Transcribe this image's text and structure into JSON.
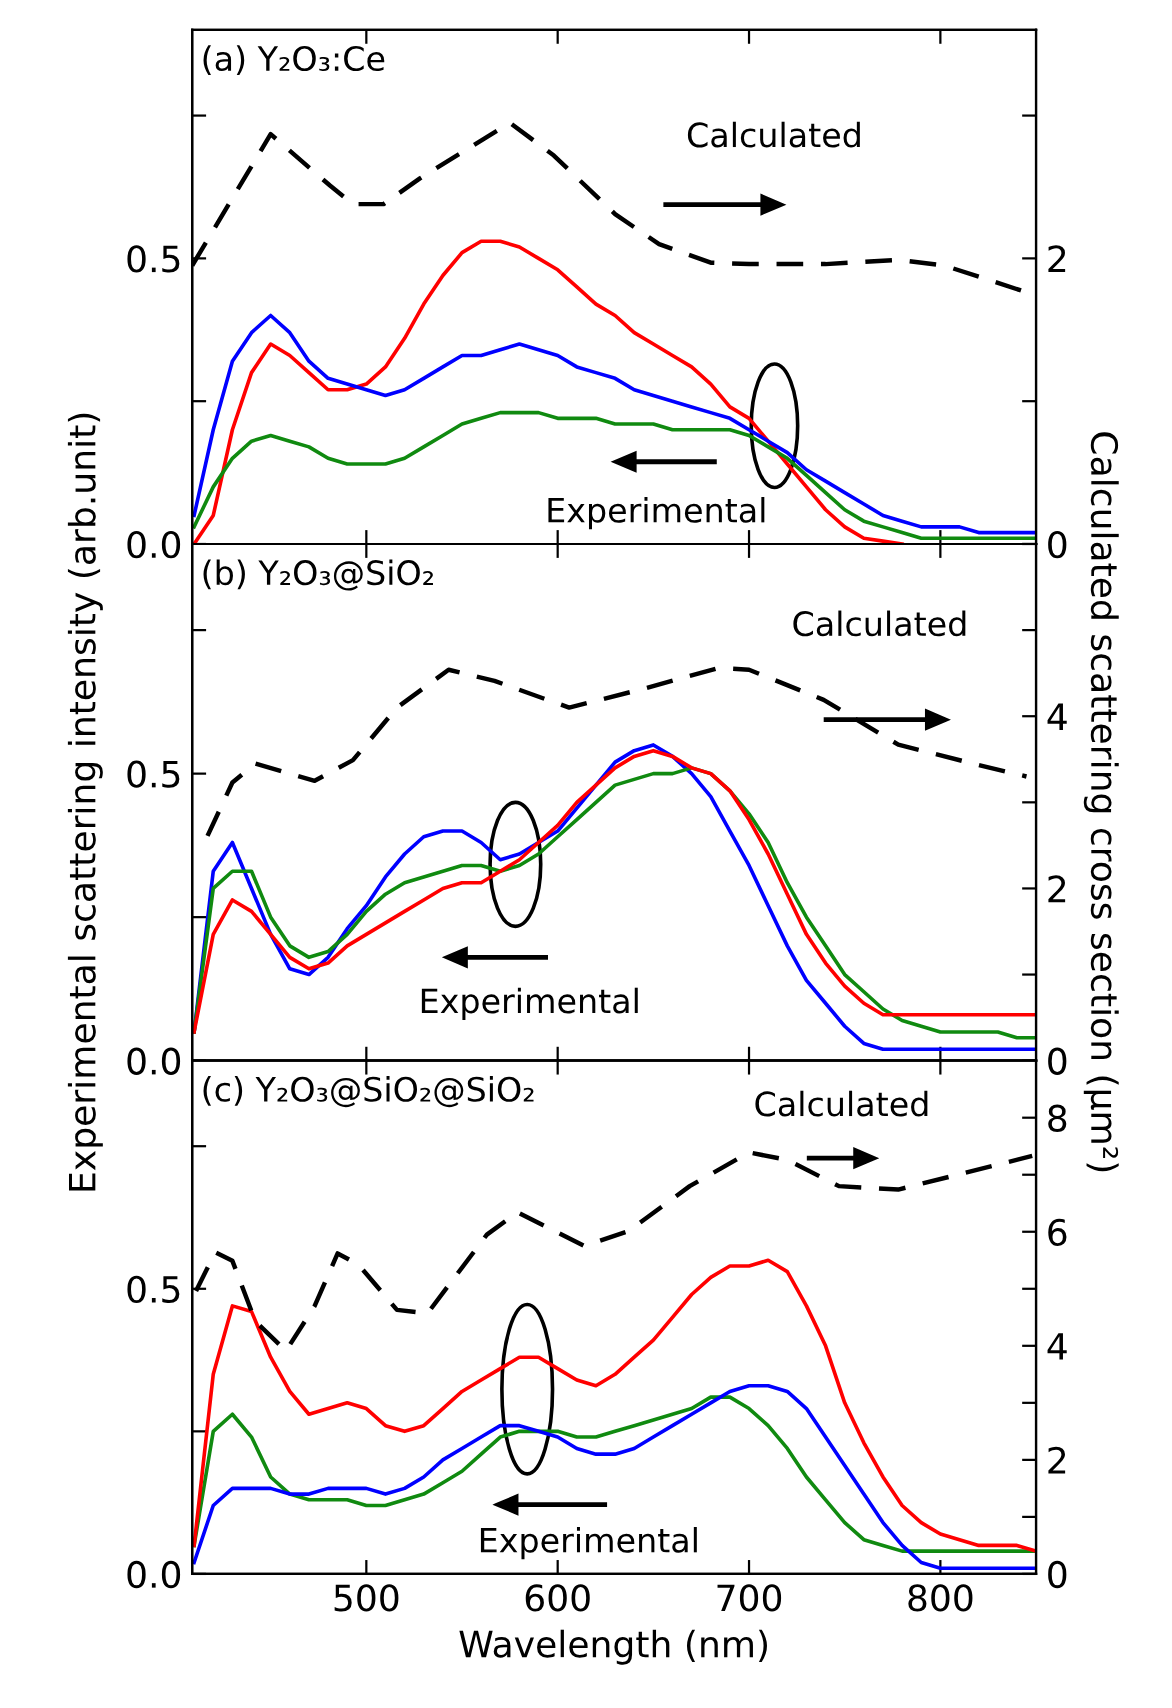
{
  "chart_data": [
    {
      "type": "line",
      "title": "(a) Y₂O₃:Ce",
      "annotations": [
        "Calculated",
        "Experimental"
      ],
      "x": [
        410,
        420,
        430,
        440,
        450,
        460,
        470,
        480,
        490,
        500,
        510,
        520,
        530,
        540,
        550,
        560,
        570,
        580,
        590,
        600,
        610,
        620,
        630,
        640,
        650,
        660,
        670,
        680,
        690,
        700,
        710,
        720,
        730,
        740,
        750,
        760,
        770,
        780,
        790,
        800,
        810,
        820,
        830,
        840,
        850
      ],
      "series": [
        {
          "color": "#ff0000",
          "values": [
            0.0,
            0.05,
            0.2,
            0.3,
            0.35,
            0.33,
            0.3,
            0.27,
            0.27,
            0.28,
            0.31,
            0.36,
            0.42,
            0.47,
            0.51,
            0.53,
            0.53,
            0.52,
            0.5,
            0.48,
            0.45,
            0.42,
            0.4,
            0.37,
            0.35,
            0.33,
            0.31,
            0.28,
            0.24,
            0.22,
            0.18,
            0.14,
            0.1,
            0.06,
            0.03,
            0.01,
            0.005,
            0.0,
            null,
            null,
            null,
            null,
            null,
            null,
            null
          ]
        },
        {
          "color": "#0000ff",
          "values": [
            0.05,
            0.2,
            0.32,
            0.37,
            0.4,
            0.37,
            0.32,
            0.29,
            0.28,
            0.27,
            0.26,
            0.27,
            0.29,
            0.31,
            0.33,
            0.33,
            0.34,
            0.35,
            0.34,
            0.33,
            0.31,
            0.3,
            0.29,
            0.27,
            0.26,
            0.25,
            0.24,
            0.23,
            0.22,
            0.2,
            0.18,
            0.16,
            0.13,
            0.11,
            0.09,
            0.07,
            0.05,
            0.04,
            0.03,
            0.03,
            0.03,
            0.02,
            0.02,
            0.02,
            0.02
          ]
        },
        {
          "color": "#108a10",
          "values": [
            0.03,
            0.1,
            0.15,
            0.18,
            0.19,
            0.18,
            0.17,
            0.15,
            0.14,
            0.14,
            0.14,
            0.15,
            0.17,
            0.19,
            0.21,
            0.22,
            0.23,
            0.23,
            0.23,
            0.22,
            0.22,
            0.22,
            0.21,
            0.21,
            0.21,
            0.2,
            0.2,
            0.2,
            0.2,
            0.19,
            0.17,
            0.15,
            0.12,
            0.09,
            0.06,
            0.04,
            0.03,
            0.02,
            0.01,
            0.01,
            0.01,
            0.01,
            0.01,
            0.01,
            0.01
          ]
        },
        {
          "color": "#000000",
          "axis": "y2",
          "line_style": "dashed",
          "x": [
            409,
            450,
            481,
            493,
            509,
            528,
            575,
            598,
            630,
            653,
            680,
            700,
            740,
            778,
            802,
            848
          ],
          "values": [
            1.95,
            2.87,
            2.51,
            2.38,
            2.38,
            2.56,
            2.95,
            2.72,
            2.31,
            2.1,
            1.97,
            1.96,
            1.96,
            1.99,
            1.95,
            1.75
          ]
        }
      ],
      "xlim": [
        409,
        850
      ],
      "xticks": [
        {
          "value": 500,
          "label": null
        },
        {
          "value": 600,
          "label": null
        },
        {
          "value": 700,
          "label": null
        },
        {
          "value": 800,
          "label": null
        }
      ],
      "ylim": [
        0,
        0.9
      ],
      "yticks": [
        {
          "value": 0,
          "label": "0.0"
        },
        {
          "value": 0.25,
          "label": null
        },
        {
          "value": 0.5,
          "label": "0.5"
        },
        {
          "value": 0.75,
          "label": null
        }
      ],
      "y2lim": [
        0,
        3.6
      ],
      "y2ticks": [
        0,
        {
          "value": 1,
          "label": null
        },
        2,
        {
          "value": 3,
          "label": null
        }
      ],
      "tick_labels": "y"
    },
    {
      "type": "line",
      "title": "(b) Y₂O₃@SiO₂",
      "annotations": [
        "Calculated",
        "Experimental"
      ],
      "ylabel": "Experimental scattering intensity (arb.unit)",
      "y2label": "Calculated scattering cross section (μm²)",
      "x": [
        410,
        420,
        430,
        440,
        450,
        460,
        470,
        480,
        490,
        500,
        510,
        520,
        530,
        540,
        550,
        560,
        570,
        580,
        590,
        600,
        610,
        620,
        630,
        640,
        650,
        660,
        670,
        680,
        690,
        700,
        710,
        720,
        730,
        740,
        750,
        760,
        770,
        780,
        790,
        800,
        810,
        820,
        830,
        840,
        850
      ],
      "series": [
        {
          "color": "#0000ff",
          "values": [
            0.05,
            0.33,
            0.38,
            0.3,
            0.22,
            0.16,
            0.15,
            0.18,
            0.23,
            0.27,
            0.32,
            0.36,
            0.39,
            0.4,
            0.4,
            0.38,
            0.35,
            0.36,
            0.38,
            0.4,
            0.44,
            0.48,
            0.52,
            0.54,
            0.55,
            0.53,
            0.5,
            0.46,
            0.4,
            0.34,
            0.27,
            0.2,
            0.14,
            0.1,
            0.06,
            0.03,
            0.02,
            0.02,
            0.02,
            0.02,
            0.02,
            0.02,
            0.02,
            0.02,
            0.02
          ]
        },
        {
          "color": "#108a10",
          "values": [
            0.05,
            0.3,
            0.33,
            0.33,
            0.25,
            0.2,
            0.18,
            0.19,
            0.22,
            0.26,
            0.29,
            0.31,
            0.32,
            0.33,
            0.34,
            0.34,
            0.33,
            0.34,
            0.36,
            0.39,
            0.42,
            0.45,
            0.48,
            0.49,
            0.5,
            0.5,
            0.51,
            0.5,
            0.47,
            0.43,
            0.38,
            0.31,
            0.25,
            0.2,
            0.15,
            0.12,
            0.09,
            0.07,
            0.06,
            0.05,
            0.05,
            0.05,
            0.05,
            0.04,
            0.04
          ]
        },
        {
          "color": "#ff0000",
          "values": [
            0.05,
            0.22,
            0.28,
            0.26,
            0.22,
            0.18,
            0.16,
            0.17,
            0.2,
            0.22,
            0.24,
            0.26,
            0.28,
            0.3,
            0.31,
            0.31,
            0.33,
            0.35,
            0.38,
            0.41,
            0.45,
            0.48,
            0.51,
            0.53,
            0.54,
            0.53,
            0.51,
            0.5,
            0.47,
            0.42,
            0.36,
            0.29,
            0.22,
            0.17,
            0.13,
            0.1,
            0.08,
            0.08,
            0.08,
            0.08,
            0.08,
            0.08,
            0.08,
            0.08,
            0.08
          ]
        },
        {
          "color": "#000000",
          "axis": "y2",
          "line_style": "dashed",
          "x": [
            417,
            430,
            442,
            473,
            493,
            516,
            543,
            567,
            606,
            645,
            684,
            700,
            739,
            778,
            817,
            845
          ],
          "values": [
            2.61,
            3.23,
            3.45,
            3.25,
            3.49,
            4.1,
            4.54,
            4.41,
            4.1,
            4.32,
            4.56,
            4.54,
            4.19,
            3.67,
            3.45,
            3.3
          ]
        }
      ],
      "xlim": [
        409,
        850
      ],
      "xticks": [
        {
          "value": 500,
          "label": null
        },
        {
          "value": 600,
          "label": null
        },
        {
          "value": 700,
          "label": null
        },
        {
          "value": 800,
          "label": null
        }
      ],
      "ylim": [
        0,
        0.9
      ],
      "yticks": [
        {
          "value": 0,
          "label": "0.0"
        },
        {
          "value": 0.25,
          "label": null
        },
        {
          "value": 0.5,
          "label": "0.5"
        },
        {
          "value": 0.75,
          "label": null
        }
      ],
      "y2lim": [
        0,
        6
      ],
      "y2ticks": [
        0,
        {
          "value": 1,
          "label": null
        },
        2,
        {
          "value": 3,
          "label": null
        },
        4,
        {
          "value": 5,
          "label": null
        },
        {
          "value": 6,
          "label": null
        }
      ],
      "tick_labels": "y"
    },
    {
      "type": "line",
      "title": "(c) Y₂O₃@SiO₂@SiO₂",
      "annotations": [
        "Calculated",
        "Experimental"
      ],
      "xlabel": "Wavelength (nm)",
      "x": [
        410,
        420,
        430,
        440,
        450,
        460,
        470,
        480,
        490,
        500,
        510,
        520,
        530,
        540,
        550,
        560,
        570,
        580,
        590,
        600,
        610,
        620,
        630,
        640,
        650,
        660,
        670,
        680,
        690,
        700,
        710,
        720,
        730,
        740,
        750,
        760,
        770,
        780,
        790,
        800,
        810,
        820,
        830,
        840,
        850
      ],
      "series": [
        {
          "color": "#108a10",
          "values": [
            0.05,
            0.25,
            0.28,
            0.24,
            0.17,
            0.14,
            0.13,
            0.13,
            0.13,
            0.12,
            0.12,
            0.13,
            0.14,
            0.16,
            0.18,
            0.21,
            0.24,
            0.25,
            0.25,
            0.25,
            0.24,
            0.24,
            0.25,
            0.26,
            0.27,
            0.28,
            0.29,
            0.31,
            0.31,
            0.29,
            0.26,
            0.22,
            0.17,
            0.13,
            0.09,
            0.06,
            0.05,
            0.04,
            0.04,
            0.04,
            0.04,
            0.04,
            0.04,
            0.04,
            0.04
          ]
        },
        {
          "color": "#0000ff",
          "values": [
            0.02,
            0.12,
            0.15,
            0.15,
            0.15,
            0.14,
            0.14,
            0.15,
            0.15,
            0.15,
            0.14,
            0.15,
            0.17,
            0.2,
            0.22,
            0.24,
            0.26,
            0.26,
            0.25,
            0.24,
            0.22,
            0.21,
            0.21,
            0.22,
            0.24,
            0.26,
            0.28,
            0.3,
            0.32,
            0.33,
            0.33,
            0.32,
            0.29,
            0.24,
            0.19,
            0.14,
            0.09,
            0.05,
            0.02,
            0.01,
            0.01,
            0.01,
            0.01,
            0.01,
            0.01
          ]
        },
        {
          "color": "#ff0000",
          "values": [
            0.05,
            0.35,
            0.47,
            0.46,
            0.38,
            0.32,
            0.28,
            0.29,
            0.3,
            0.29,
            0.26,
            0.25,
            0.26,
            0.29,
            0.32,
            0.34,
            0.36,
            0.38,
            0.38,
            0.36,
            0.34,
            0.33,
            0.35,
            0.38,
            0.41,
            0.45,
            0.49,
            0.52,
            0.54,
            0.54,
            0.55,
            0.53,
            0.47,
            0.4,
            0.3,
            0.23,
            0.17,
            0.12,
            0.09,
            0.07,
            0.06,
            0.05,
            0.05,
            0.05,
            0.04
          ]
        },
        {
          "color": "#000000",
          "axis": "y2",
          "line_style": "dashed",
          "x": [
            411,
            421,
            430,
            442,
            458,
            473,
            485,
            496,
            516,
            532,
            563,
            579,
            614,
            637,
            669,
            700,
            720,
            747,
            778,
            809,
            848
          ],
          "values": [
            4.96,
            5.64,
            5.49,
            4.43,
            3.91,
            4.7,
            5.62,
            5.42,
            4.63,
            4.57,
            5.95,
            6.34,
            5.75,
            6.01,
            6.8,
            7.39,
            7.26,
            6.8,
            6.74,
            7.0,
            7.33
          ]
        }
      ],
      "xlim": [
        409,
        850
      ],
      "xticks": [
        500,
        600,
        700,
        800
      ],
      "ylim": [
        0,
        0.9
      ],
      "yticks": [
        {
          "value": 0,
          "label": "0.0"
        },
        {
          "value": 0.25,
          "label": null
        },
        {
          "value": 0.5,
          "label": "0.5"
        },
        {
          "value": 0.75,
          "label": null
        }
      ],
      "y2lim": [
        0,
        9
      ],
      "y2ticks": [
        0,
        {
          "value": 1,
          "label": null
        },
        2,
        {
          "value": 3,
          "label": null
        },
        4,
        {
          "value": 5,
          "label": null
        },
        6,
        {
          "value": 7,
          "label": null
        },
        8
      ]
    }
  ]
}
